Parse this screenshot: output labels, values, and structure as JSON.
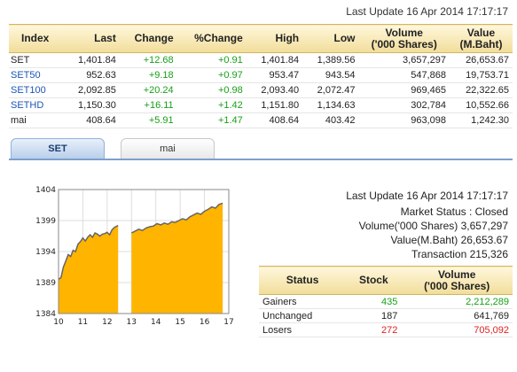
{
  "top": {
    "last_update": "Last Update 16 Apr 2014 17:17:17"
  },
  "index_table": {
    "headers": {
      "index": "Index",
      "last": "Last",
      "change": "Change",
      "pct_change": "%Change",
      "high": "High",
      "low": "Low",
      "volume_line1": "Volume",
      "volume_line2": "('000 Shares)",
      "value_line1": "Value",
      "value_line2": "(M.Baht)"
    },
    "rows": [
      {
        "name": "SET",
        "last": "1,401.84",
        "change": "+12.68",
        "pct": "+0.91",
        "high": "1,401.84",
        "low": "1,389.56",
        "volume": "3,657,297",
        "value": "26,653.67"
      },
      {
        "name": "SET50",
        "last": "952.63",
        "change": "+9.18",
        "pct": "+0.97",
        "high": "953.47",
        "low": "943.54",
        "volume": "547,868",
        "value": "19,753.71"
      },
      {
        "name": "SET100",
        "last": "2,092.85",
        "change": "+20.24",
        "pct": "+0.98",
        "high": "2,093.40",
        "low": "2,072.47",
        "volume": "969,465",
        "value": "22,322.65"
      },
      {
        "name": "SETHD",
        "last": "1,150.30",
        "change": "+16.11",
        "pct": "+1.42",
        "high": "1,151.80",
        "low": "1,134.63",
        "volume": "302,784",
        "value": "10,552.66"
      },
      {
        "name": "mai",
        "last": "408.64",
        "change": "+5.91",
        "pct": "+1.47",
        "high": "408.64",
        "low": "403.42",
        "volume": "963,098",
        "value": "1,242.30"
      }
    ]
  },
  "tabs": {
    "set": "SET",
    "mai": "mai"
  },
  "chart_data": {
    "type": "area",
    "x_ticks": [
      "10",
      "11",
      "12",
      "13",
      "14",
      "15",
      "16",
      "17"
    ],
    "y_ticks": [
      "1384",
      "1389",
      "1394",
      "1399",
      "1404"
    ],
    "ylim": [
      1384,
      1404
    ],
    "xlim": [
      10,
      17
    ],
    "fill_color": "#ffb400",
    "line_color": "#666666",
    "segments": [
      {
        "x": [
          10.0,
          10.1,
          10.2,
          10.3,
          10.4,
          10.5,
          10.6,
          10.7,
          10.8,
          10.9,
          11.0,
          11.1,
          11.2,
          11.3,
          11.4,
          11.5,
          11.6,
          11.7,
          11.8,
          11.9,
          12.0,
          12.1,
          12.2,
          12.3,
          12.45
        ],
        "y": [
          1389.5,
          1389.8,
          1391.5,
          1392.5,
          1393.5,
          1393.2,
          1394.2,
          1394.0,
          1395.2,
          1395.6,
          1396.2,
          1395.7,
          1396.3,
          1396.7,
          1396.3,
          1397.0,
          1396.8,
          1396.5,
          1396.8,
          1396.9,
          1397.1,
          1396.7,
          1397.5,
          1397.9,
          1398.2
        ]
      },
      {
        "x": [
          13.0,
          13.15,
          13.3,
          13.45,
          13.6,
          13.75,
          13.9,
          14.05,
          14.2,
          14.35,
          14.5,
          14.65,
          14.8,
          14.95,
          15.1,
          15.25,
          15.4,
          15.55,
          15.7,
          15.85,
          16.0,
          16.15,
          16.3,
          16.45,
          16.6,
          16.75
        ],
        "y": [
          1397.0,
          1397.3,
          1397.6,
          1397.4,
          1397.8,
          1398.0,
          1398.1,
          1398.5,
          1398.3,
          1398.6,
          1398.4,
          1398.8,
          1398.7,
          1399.0,
          1399.3,
          1399.1,
          1399.6,
          1399.9,
          1400.2,
          1400.0,
          1400.5,
          1400.8,
          1401.2,
          1401.0,
          1401.6,
          1401.8
        ]
      }
    ]
  },
  "status": {
    "last_update": "Last Update 16 Apr 2014 17:17:17",
    "market_status": "Market Status : Closed",
    "volume": "Volume('000 Shares) 3,657,297",
    "value": "Value(M.Baht) 26,653.67",
    "transaction": "Transaction 215,326"
  },
  "stat_table": {
    "headers": {
      "status": "Status",
      "stock": "Stock",
      "volume_line1": "Volume",
      "volume_line2": "('000 Shares)"
    },
    "rows": [
      {
        "status": "Gainers",
        "stock": "435",
        "volume": "2,212,289",
        "color": "#18a018"
      },
      {
        "status": "Unchanged",
        "stock": "187",
        "volume": "641,769",
        "color": "#222222"
      },
      {
        "status": "Losers",
        "stock": "272",
        "volume": "705,092",
        "color": "#e02020"
      }
    ]
  }
}
